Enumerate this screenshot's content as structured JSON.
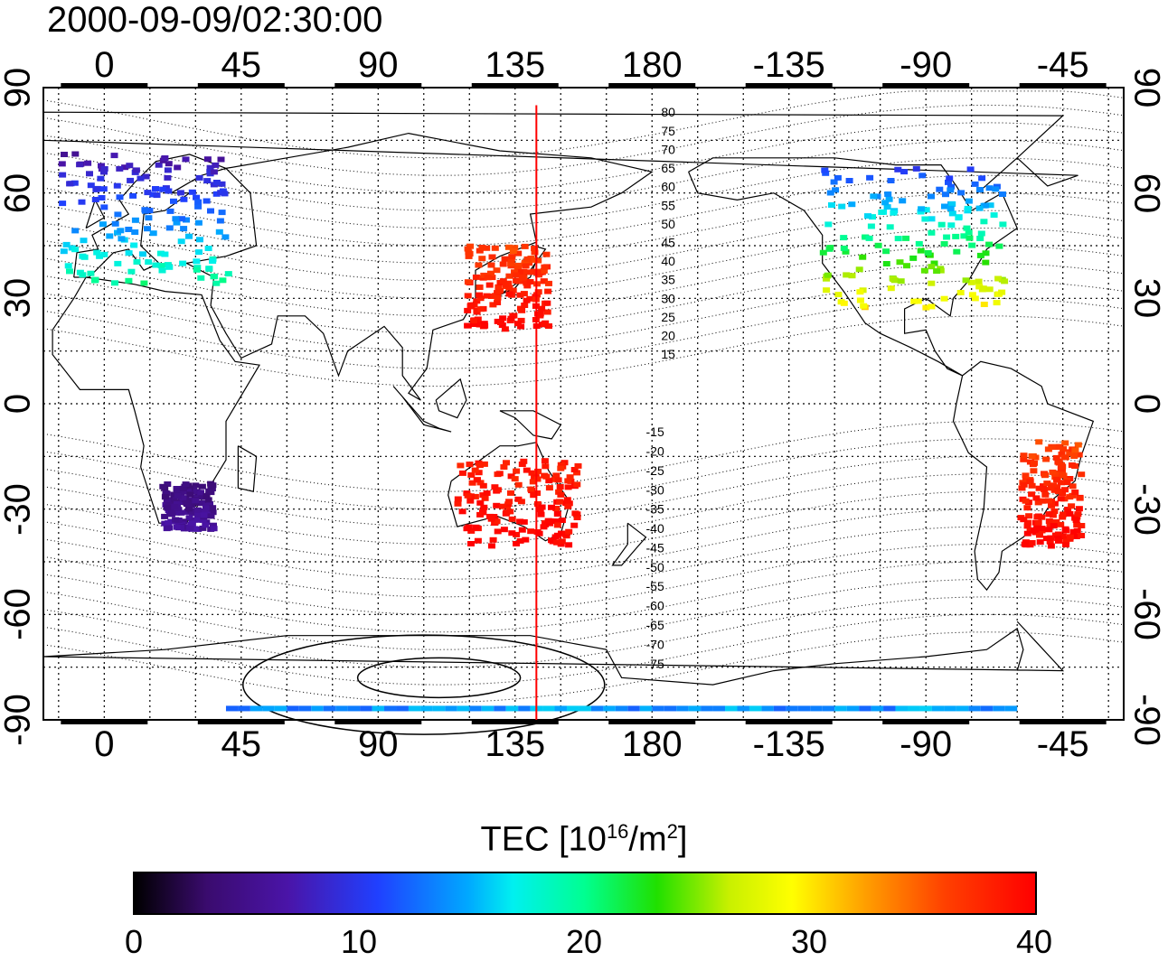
{
  "timestamp": "2000-09-09/02:30:00",
  "map": {
    "projection": "equirectangular",
    "x_axis_ticks_top": [
      "0",
      "45",
      "90",
      "135",
      "180",
      "-135",
      "-90",
      "-45"
    ],
    "x_axis_ticks_bottom": [
      "0",
      "45",
      "90",
      "135",
      "180",
      "-135",
      "-90",
      "-45"
    ],
    "y_axis_ticks_left": [
      "90",
      "60",
      "30",
      "0",
      "-30",
      "-60",
      "-90"
    ],
    "y_axis_ticks_right": [
      "90",
      "60",
      "30",
      "0",
      "-30",
      "-60",
      "-90"
    ],
    "lon_range": [
      -20,
      335
    ],
    "lat_range": [
      -90,
      90
    ],
    "terminator_longitude": 142,
    "magnetic_latitude_labels_north": [
      "80",
      "75",
      "70",
      "65",
      "60",
      "55",
      "50",
      "45",
      "40",
      "35",
      "30",
      "25",
      "20",
      "15"
    ],
    "magnetic_latitude_labels_south": [
      "-15",
      "-20",
      "-25",
      "-30",
      "-35",
      "-40",
      "-45",
      "-50",
      "-55",
      "-60",
      "-65",
      "-70",
      "-75"
    ]
  },
  "colorbar": {
    "title_prefix": "TEC  [10",
    "title_exp1": "16",
    "title_mid": "/m",
    "title_exp2": "2",
    "title_suffix": "]",
    "min": 0,
    "max": 40,
    "ticks": [
      "0",
      "10",
      "20",
      "30",
      "40"
    ]
  },
  "colors": {
    "terminator": "#ff0000",
    "low": "#000000",
    "high": "#ff0000"
  },
  "tec_regions": [
    {
      "name": "europe",
      "lon": [
        -15,
        40
      ],
      "lat": [
        35,
        72
      ],
      "tec": [
        6,
        20
      ]
    },
    {
      "name": "east-asia",
      "lon": [
        118,
        145
      ],
      "lat": [
        22,
        46
      ],
      "tec": [
        36,
        40
      ]
    },
    {
      "name": "north-america",
      "lon": [
        -125,
        -65
      ],
      "lat": [
        28,
        68
      ],
      "tec": [
        10,
        30
      ]
    },
    {
      "name": "australia",
      "lon": [
        115,
        155
      ],
      "lat": [
        -40,
        -15
      ],
      "tec": [
        38,
        40
      ]
    },
    {
      "name": "south-america",
      "lon": [
        -60,
        -40
      ],
      "lat": [
        -40,
        -10
      ],
      "tec": [
        36,
        40
      ]
    },
    {
      "name": "south-africa",
      "lon": [
        18,
        35
      ],
      "lat": [
        -35,
        -22
      ],
      "tec": [
        4,
        6
      ]
    },
    {
      "name": "antarctic-band",
      "lon": [
        40,
        300
      ],
      "lat": [
        -88,
        -86
      ],
      "tec": [
        12,
        16
      ]
    }
  ]
}
